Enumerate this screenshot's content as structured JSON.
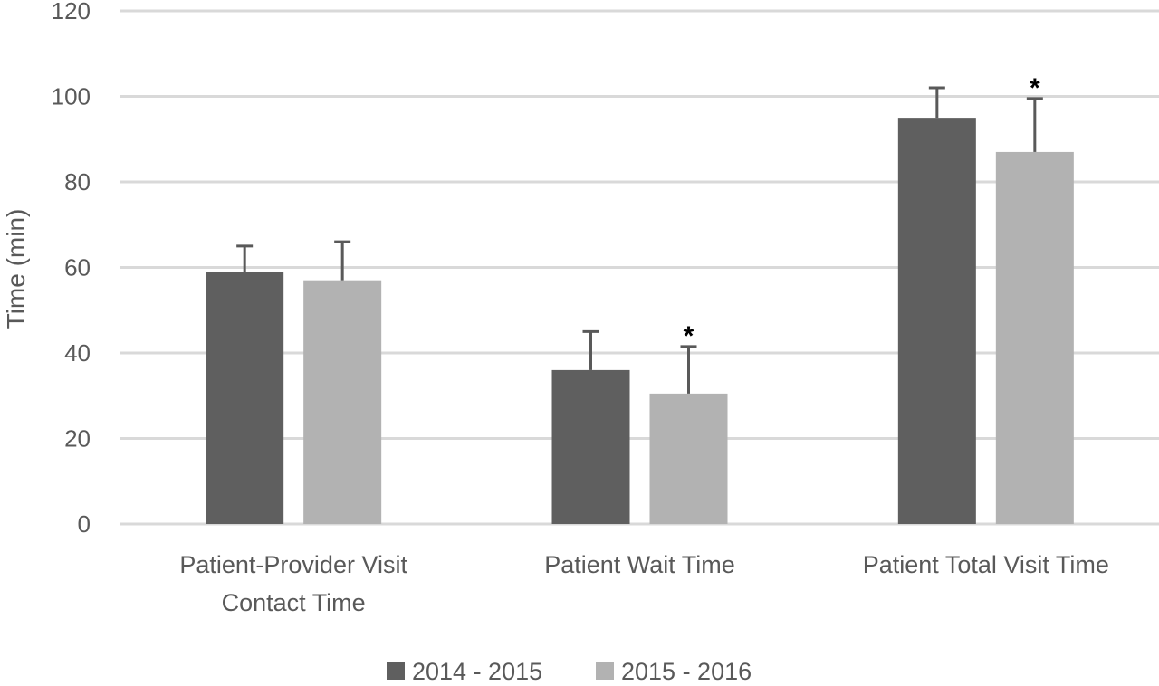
{
  "colors": {
    "series_2014": "#5f5f5f",
    "series_2015": "#b2b2b2",
    "grid": "#d9d9d9",
    "error_bar": "#595959",
    "text": "#595959"
  },
  "chart_data": {
    "type": "bar",
    "title": "",
    "xlabel": "",
    "ylabel": "Time (min)",
    "ylim": [
      0,
      120
    ],
    "yticks": [
      0,
      20,
      40,
      60,
      80,
      100,
      120
    ],
    "grid": true,
    "legend_position": "bottom",
    "categories": [
      [
        "Patient-Provider Visit",
        "Contact Time"
      ],
      [
        "Patient Wait Time"
      ],
      [
        "Patient Total Visit Time"
      ]
    ],
    "series": [
      {
        "name": "2014 - 2015",
        "values": [
          59,
          36,
          95
        ],
        "error_upper": [
          65,
          45,
          102
        ]
      },
      {
        "name": "2015 - 2016",
        "values": [
          57,
          30.5,
          87
        ],
        "error_upper": [
          66,
          41.5,
          99.5
        ]
      }
    ],
    "annotations": [
      {
        "category_index": 1,
        "series_index": 1,
        "text": "*"
      },
      {
        "category_index": 2,
        "series_index": 1,
        "text": "*"
      }
    ]
  }
}
